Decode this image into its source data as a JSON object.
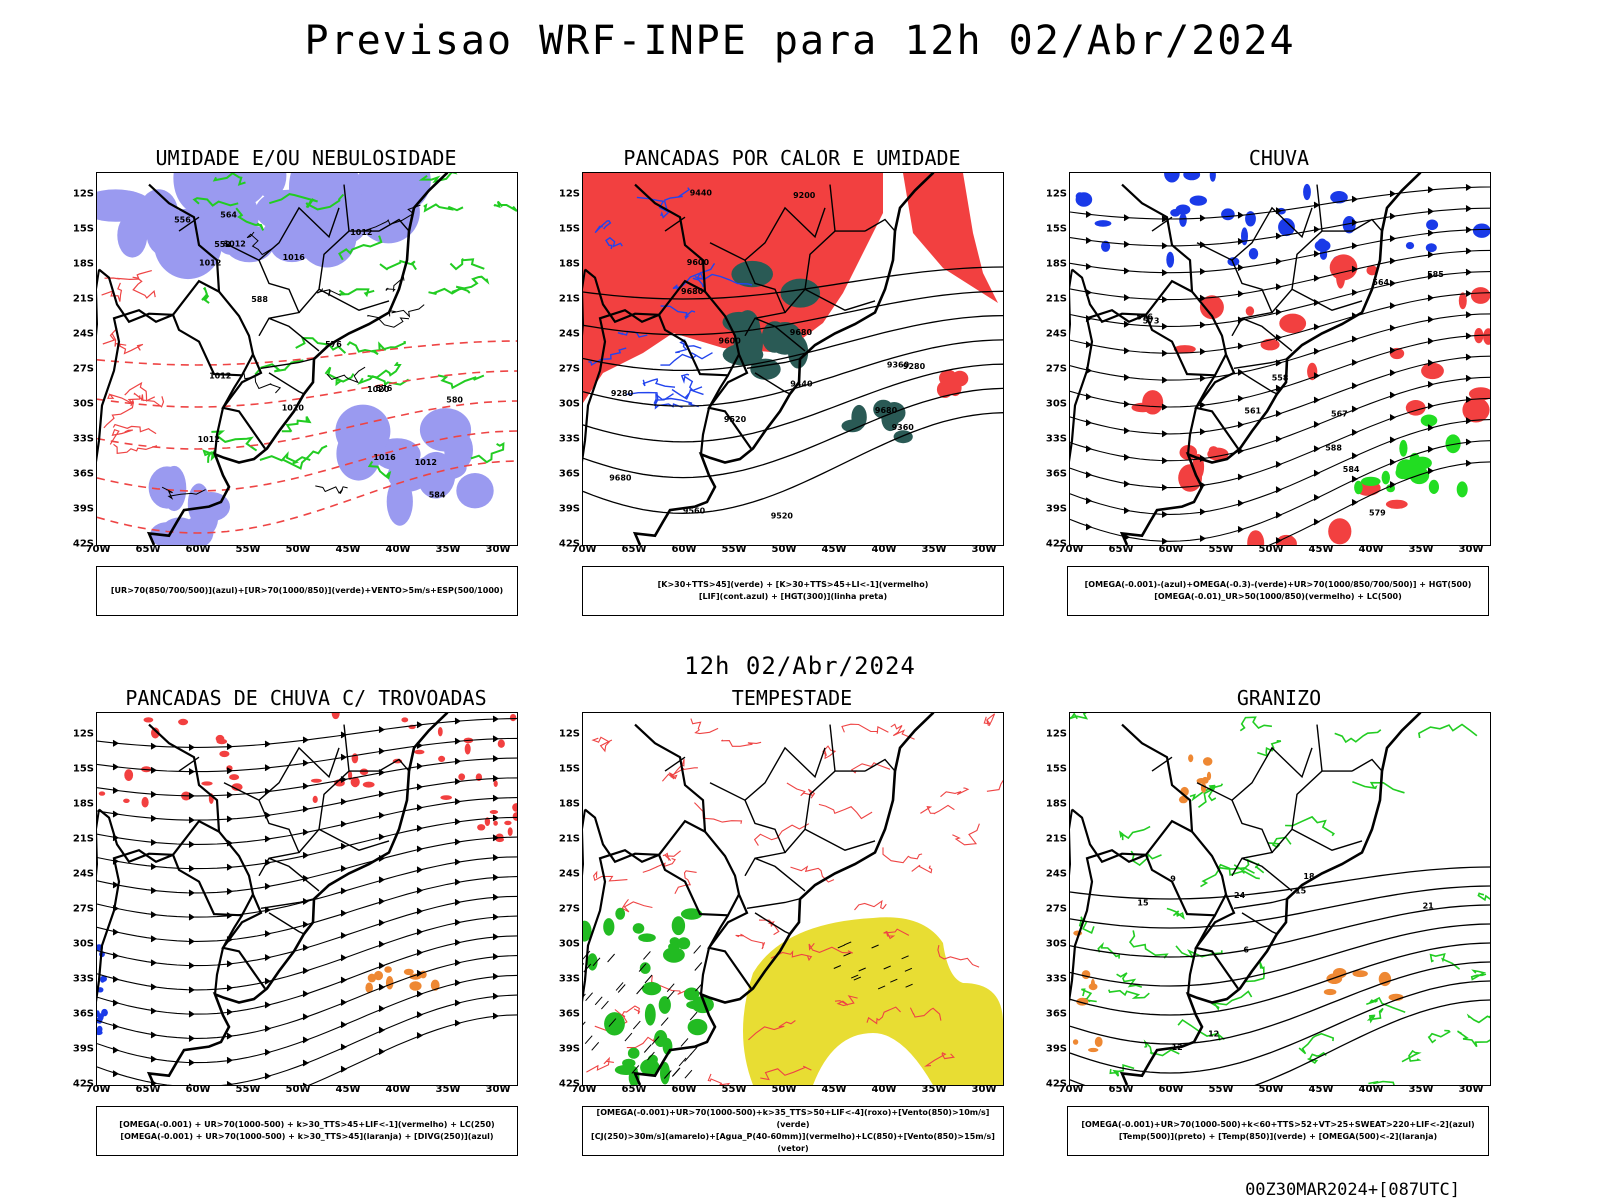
{
  "title": "Previsao WRF-INPE  para 12h 02/Abr/2024",
  "middle_label": "12h 02/Abr/2024",
  "footer": "00Z30MAR2024+[087UTC]",
  "lat_labels": [
    "12S",
    "15S",
    "18S",
    "21S",
    "24S",
    "27S",
    "30S",
    "33S",
    "36S",
    "39S",
    "42S"
  ],
  "lon_labels": [
    "70W",
    "65W",
    "60W",
    "55W",
    "50W",
    "45W",
    "40W",
    "35W",
    "30W"
  ],
  "colors": {
    "blue_humidity": "#9a9af0",
    "green_contour": "#22cc22",
    "red_fill": "#f24040",
    "dark_teal": "#2a5a55",
    "blue_contour": "#2244ee",
    "blue_fill": "#1a3ae8",
    "orange_fill": "#ee8833",
    "yellow_fill": "#e8dd33",
    "red_contour": "#ee4444",
    "green_vector": "#22bb22"
  },
  "panels": [
    {
      "id": "umidade",
      "title": "UMIDADE E/OU NEBULOSIDADE",
      "legend": [
        "[UR>70(850/700/500)](azul)+[UR>70(1000/850)](verde)+VENTO>5m/s+ESP(500/1000)"
      ],
      "contour_labels": [
        "1012",
        "1012",
        "1012",
        "1012",
        "1016",
        "1012",
        "1012",
        "1020",
        "1016",
        "1020",
        "576",
        "576",
        "580",
        "584",
        "588",
        "564",
        "552",
        "556"
      ]
    },
    {
      "id": "pancadas-calor",
      "title": "PANCADAS POR CALOR E UMIDADE",
      "legend": [
        "[K>30+TTS>45](verde) + [K>30+TTS>45+LI<-1](vermelho)",
        "[LIF](cont.azul) + [HGT(300)](linha preta)"
      ],
      "contour_labels": [
        "9680",
        "9680",
        "9680",
        "9680",
        "9600",
        "9560",
        "9520",
        "9440",
        "9360",
        "9280",
        "9200",
        "9600",
        "9520",
        "9440",
        "9360",
        "9280"
      ]
    },
    {
      "id": "chuva",
      "title": "CHUVA",
      "legend": [
        "[OMEGA(-0.001)-(azul)+OMEGA(-0.3)-(verde)+UR>70(1000/850/700/500)] + HGT(500)",
        "[OMEGA(-0.01)_UR>50(1000/850)(vermelho) + LC(500)"
      ],
      "contour_labels": [
        "585",
        "576",
        "573",
        "567",
        "564",
        "561",
        "558",
        "588",
        "584",
        "579"
      ]
    },
    {
      "id": "pancadas-trovoadas",
      "title": "PANCADAS DE CHUVA C/ TROVOADAS",
      "legend": [
        "[OMEGA(-0.001) + UR>70(1000-500) + k>30_TTS>45+LIF<-1](vermelho) + LC(250)",
        "[OMEGA(-0.001) + UR>70(1000-500) + k>30_TTS>45](laranja) + [DIVG(250)](azul)"
      ]
    },
    {
      "id": "tempestade",
      "title": "TEMPESTADE",
      "legend": [
        "[OMEGA(-0.001)+UR>70(1000-500)+k>35_TTS>50+LIF<-4](roxo)+[Vento(850)>10m/s](verde)",
        "[CJ(250)>30m/s](amarelo)+[Agua_P(40-60mm)](vermelho)+LC(850)+[Vento(850)>15m/s](vetor)"
      ]
    },
    {
      "id": "granizo",
      "title": "GRANIZO",
      "legend": [
        "[OMEGA(-0.001)+UR>70(1000-500)+k<60+TTS>52+VT>25+SWEAT>220+LIF<-2](azul)",
        "[Temp(500)](preto) + [Temp(850)](verde) + [OMEGA(500)<-2](laranja)"
      ],
      "contour_labels": [
        "12",
        "15",
        "18",
        "21",
        "24",
        "12",
        "15",
        "9",
        "6"
      ]
    }
  ]
}
